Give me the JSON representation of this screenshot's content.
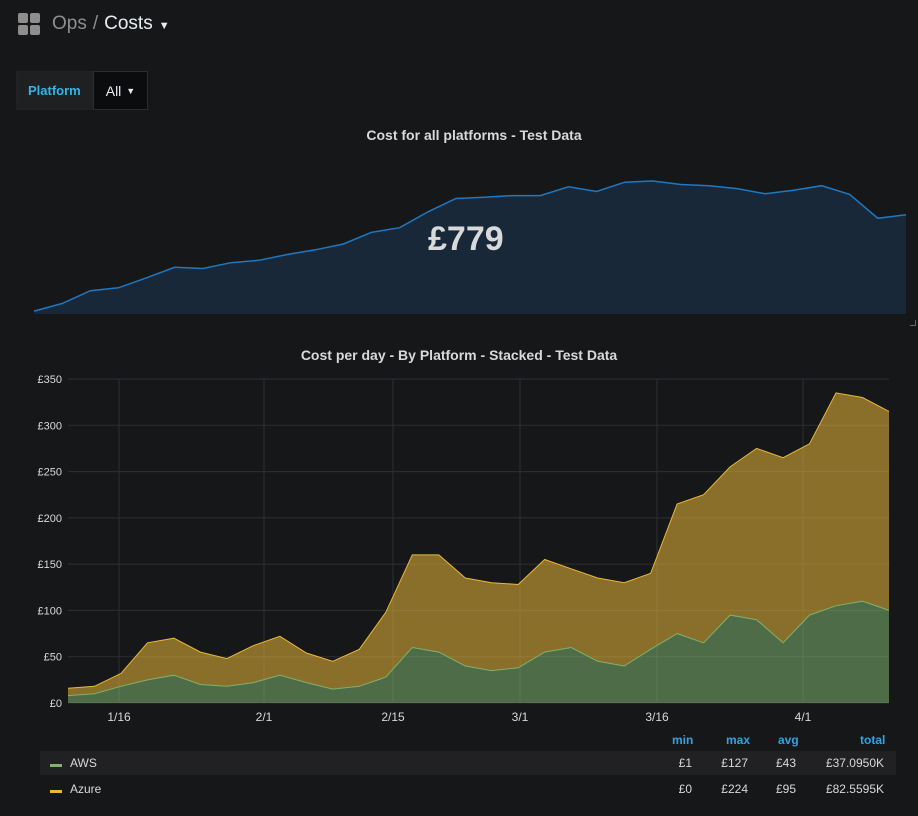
{
  "breadcrumb": {
    "folder": "Ops",
    "separator": "/",
    "title": "Costs"
  },
  "variable": {
    "label": "Platform",
    "value": "All"
  },
  "stat_panel": {
    "title": "Cost for all platforms - Test Data",
    "value": "£779",
    "color": "#1f78c1"
  },
  "graph_panel": {
    "title": "Cost per day - By Platform - Stacked - Test Data"
  },
  "legend": {
    "headers": {
      "min": "min",
      "max": "max",
      "avg": "avg",
      "total": "total"
    },
    "rows": [
      {
        "name": "AWS",
        "color": "#7eb26d",
        "min": "£1",
        "max": "£127",
        "avg": "£43",
        "total": "£37.0950K"
      },
      {
        "name": "Azure",
        "color": "#eab839",
        "min": "£0",
        "max": "£224",
        "avg": "£95",
        "total": "£82.5595K"
      }
    ]
  },
  "chart_data": [
    {
      "type": "area",
      "title": "Cost for all platforms - Test Data",
      "x": [
        "1/10",
        "1/13",
        "1/16",
        "1/19",
        "1/22",
        "1/25",
        "1/28",
        "1/31",
        "2/3",
        "2/6",
        "2/9",
        "2/12",
        "2/15",
        "2/18",
        "2/21",
        "2/24",
        "2/27",
        "3/2",
        "3/5",
        "3/8",
        "3/11",
        "3/14",
        "3/17",
        "3/20",
        "3/23",
        "3/26",
        "3/29",
        "4/1",
        "4/4",
        "4/7",
        "4/10",
        "4/12"
      ],
      "values": [
        5,
        18,
        40,
        45,
        62,
        80,
        78,
        88,
        92,
        102,
        110,
        120,
        140,
        148,
        175,
        198,
        200,
        203,
        203,
        218,
        210,
        226,
        228,
        222,
        220,
        215,
        206,
        212,
        220,
        205,
        164,
        170
      ],
      "grid": false
    },
    {
      "type": "area",
      "stacked": true,
      "title": "Cost per day - By Platform - Stacked - Test Data",
      "x_ticks": [
        "1/16",
        "2/1",
        "2/15",
        "3/1",
        "3/16",
        "4/1"
      ],
      "y_ticks": [
        "£0",
        "£50",
        "£100",
        "£150",
        "£200",
        "£250",
        "£300",
        "£350"
      ],
      "ylim": [
        0,
        350
      ],
      "grid": true,
      "legend_position": "bottom",
      "x": [
        "1/10",
        "1/13",
        "1/16",
        "1/19",
        "1/22",
        "1/25",
        "1/28",
        "1/31",
        "2/3",
        "2/6",
        "2/9",
        "2/12",
        "2/15",
        "2/18",
        "2/21",
        "2/24",
        "2/27",
        "3/2",
        "3/5",
        "3/8",
        "3/11",
        "3/14",
        "3/17",
        "3/20",
        "3/23",
        "3/26",
        "3/29",
        "4/1",
        "4/4",
        "4/7",
        "4/10",
        "4/12"
      ],
      "series": [
        {
          "name": "AWS",
          "color": "#7eb26d",
          "values": [
            8,
            10,
            18,
            25,
            30,
            20,
            18,
            22,
            30,
            22,
            15,
            18,
            28,
            60,
            55,
            40,
            35,
            38,
            55,
            60,
            45,
            40,
            58,
            75,
            65,
            95,
            90,
            65,
            95,
            105,
            110,
            100
          ]
        },
        {
          "name": "Azure",
          "color": "#eab839",
          "values": [
            8,
            8,
            14,
            40,
            40,
            35,
            30,
            40,
            42,
            32,
            30,
            40,
            70,
            100,
            105,
            95,
            95,
            90,
            100,
            85,
            90,
            90,
            82,
            140,
            160,
            160,
            185,
            200,
            185,
            230,
            220,
            215
          ]
        }
      ]
    }
  ]
}
